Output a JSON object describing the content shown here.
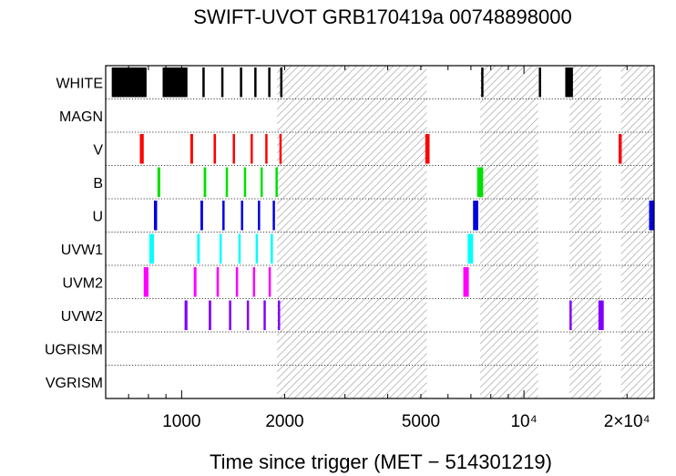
{
  "chart_data": {
    "type": "timeline",
    "title": "SWIFT-UVOT GRB170419a 00748898000",
    "xlabel": "Time since trigger (MET − 514301219)",
    "xscale": "log",
    "xlim": [
      600,
      24000
    ],
    "x_tick_labels": [
      {
        "value": 1000,
        "label": "1000"
      },
      {
        "value": 2000,
        "label": "2000"
      },
      {
        "value": 5000,
        "label": "5000"
      },
      {
        "value": 10000,
        "label": "10⁴"
      },
      {
        "value": 20000,
        "label": "2×10⁴"
      }
    ],
    "filters": [
      "WHITE",
      "MAGN",
      "V",
      "B",
      "U",
      "UVW1",
      "UVM2",
      "UVW2",
      "UGRISM",
      "VGRISM"
    ],
    "colors": {
      "WHITE": "#000000",
      "MAGN": "#000000",
      "V": "#ff0000",
      "B": "#00e000",
      "U": "#0000e0",
      "UVW1": "#00ffff",
      "UVM2": "#ff00ff",
      "UVW2": "#8000ff",
      "UGRISM": "#000000",
      "VGRISM": "#000000"
    },
    "hatched_intervals": [
      [
        1900,
        5200
      ],
      [
        7450,
        11000
      ],
      [
        13600,
        16800
      ],
      [
        19200,
        24000
      ]
    ],
    "exposures": [
      {
        "filter": "WHITE",
        "start": 625,
        "end": 790
      },
      {
        "filter": "WHITE",
        "start": 880,
        "end": 1040
      },
      {
        "filter": "WHITE",
        "start": 1150,
        "end": 1165
      },
      {
        "filter": "WHITE",
        "start": 1305,
        "end": 1320
      },
      {
        "filter": "WHITE",
        "start": 1480,
        "end": 1495
      },
      {
        "filter": "WHITE",
        "start": 1630,
        "end": 1645
      },
      {
        "filter": "WHITE",
        "start": 1790,
        "end": 1805
      },
      {
        "filter": "WHITE",
        "start": 1940,
        "end": 1955
      },
      {
        "filter": "WHITE",
        "start": 7500,
        "end": 7570
      },
      {
        "filter": "WHITE",
        "start": 11050,
        "end": 11150
      },
      {
        "filter": "WHITE",
        "start": 13200,
        "end": 13900
      },
      {
        "filter": "V",
        "start": 755,
        "end": 775
      },
      {
        "filter": "V",
        "start": 1060,
        "end": 1080
      },
      {
        "filter": "V",
        "start": 1240,
        "end": 1260
      },
      {
        "filter": "V",
        "start": 1410,
        "end": 1430
      },
      {
        "filter": "V",
        "start": 1590,
        "end": 1610
      },
      {
        "filter": "V",
        "start": 1755,
        "end": 1775
      },
      {
        "filter": "V",
        "start": 1930,
        "end": 1945
      },
      {
        "filter": "V",
        "start": 5150,
        "end": 5300
      },
      {
        "filter": "V",
        "start": 18900,
        "end": 19300
      },
      {
        "filter": "B",
        "start": 850,
        "end": 866
      },
      {
        "filter": "B",
        "start": 1160,
        "end": 1180
      },
      {
        "filter": "B",
        "start": 1345,
        "end": 1365
      },
      {
        "filter": "B",
        "start": 1520,
        "end": 1540
      },
      {
        "filter": "B",
        "start": 1700,
        "end": 1720
      },
      {
        "filter": "B",
        "start": 1880,
        "end": 1895
      },
      {
        "filter": "B",
        "start": 7300,
        "end": 7600
      },
      {
        "filter": "U",
        "start": 830,
        "end": 848
      },
      {
        "filter": "U",
        "start": 1135,
        "end": 1155
      },
      {
        "filter": "U",
        "start": 1315,
        "end": 1335
      },
      {
        "filter": "U",
        "start": 1490,
        "end": 1510
      },
      {
        "filter": "U",
        "start": 1670,
        "end": 1690
      },
      {
        "filter": "U",
        "start": 1845,
        "end": 1860
      },
      {
        "filter": "U",
        "start": 7100,
        "end": 7350
      },
      {
        "filter": "U",
        "start": 23200,
        "end": 24000
      },
      {
        "filter": "UVW1",
        "start": 805,
        "end": 830
      },
      {
        "filter": "UVW1",
        "start": 1110,
        "end": 1130
      },
      {
        "filter": "UVW1",
        "start": 1290,
        "end": 1310
      },
      {
        "filter": "UVW1",
        "start": 1465,
        "end": 1485
      },
      {
        "filter": "UVW1",
        "start": 1645,
        "end": 1665
      },
      {
        "filter": "UVW1",
        "start": 1820,
        "end": 1840
      },
      {
        "filter": "UVW1",
        "start": 6850,
        "end": 7100
      },
      {
        "filter": "UVM2",
        "start": 775,
        "end": 800
      },
      {
        "filter": "UVM2",
        "start": 1085,
        "end": 1105
      },
      {
        "filter": "UVM2",
        "start": 1265,
        "end": 1285
      },
      {
        "filter": "UVM2",
        "start": 1440,
        "end": 1460
      },
      {
        "filter": "UVM2",
        "start": 1615,
        "end": 1635
      },
      {
        "filter": "UVM2",
        "start": 1795,
        "end": 1815
      },
      {
        "filter": "UVM2",
        "start": 6650,
        "end": 6900
      },
      {
        "filter": "UVW2",
        "start": 1020,
        "end": 1040
      },
      {
        "filter": "UVW2",
        "start": 1200,
        "end": 1220
      },
      {
        "filter": "UVW2",
        "start": 1375,
        "end": 1395
      },
      {
        "filter": "UVW2",
        "start": 1550,
        "end": 1570
      },
      {
        "filter": "UVW2",
        "start": 1735,
        "end": 1750
      },
      {
        "filter": "UVW2",
        "start": 1910,
        "end": 1930
      },
      {
        "filter": "UVW2",
        "start": 13580,
        "end": 13650
      },
      {
        "filter": "UVW2",
        "start": 16500,
        "end": 17100
      }
    ]
  }
}
